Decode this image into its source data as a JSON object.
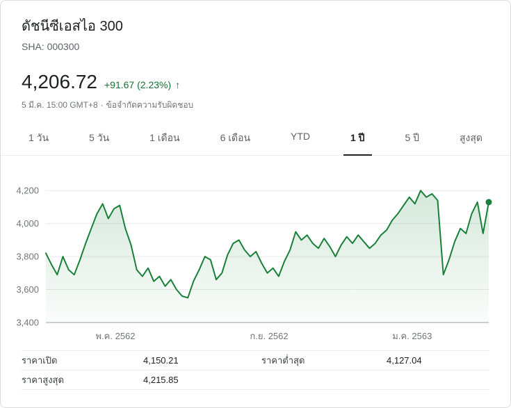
{
  "header": {
    "title": "ดัชนีซีเอสไอ 300",
    "symbol": "SHA: 000300"
  },
  "quote": {
    "price": "4,206.72",
    "change": "+91.67 (2.23%)",
    "arrow": "↑",
    "timestamp": "5 มี.ค. 15:00 GMT+8",
    "separator": "·",
    "disclaimer": "ข้อจำกัดความรับผิดชอบ"
  },
  "tabs": [
    {
      "label": "1 วัน",
      "active": false
    },
    {
      "label": "5 วัน",
      "active": false
    },
    {
      "label": "1 เดือน",
      "active": false
    },
    {
      "label": "6 เดือน",
      "active": false
    },
    {
      "label": "YTD",
      "active": false
    },
    {
      "label": "1 ปี",
      "active": true
    },
    {
      "label": "5 ปี",
      "active": false
    },
    {
      "label": "สูงสุด",
      "active": false
    }
  ],
  "chart_data": {
    "type": "area",
    "series_name": "ดัชนีซีเอสไอ 300 (1 ปี)",
    "values": [
      3820,
      3750,
      3690,
      3800,
      3720,
      3690,
      3780,
      3880,
      3970,
      4060,
      4120,
      4030,
      4090,
      4110,
      3970,
      3870,
      3720,
      3680,
      3730,
      3650,
      3680,
      3620,
      3660,
      3600,
      3560,
      3550,
      3650,
      3720,
      3800,
      3780,
      3660,
      3700,
      3810,
      3880,
      3900,
      3840,
      3800,
      3830,
      3760,
      3700,
      3730,
      3680,
      3770,
      3840,
      3950,
      3900,
      3930,
      3880,
      3850,
      3910,
      3860,
      3800,
      3870,
      3920,
      3880,
      3930,
      3890,
      3850,
      3880,
      3930,
      3960,
      4020,
      4060,
      4110,
      4160,
      4120,
      4200,
      4160,
      4180,
      4140,
      3690,
      3780,
      3890,
      3970,
      3940,
      4060,
      4130,
      3940,
      4130
    ],
    "x_ticks": [
      {
        "label": "พ.ค. 2562",
        "pos": 0.157
      },
      {
        "label": "ก.ย. 2562",
        "pos": 0.504
      },
      {
        "label": "ม.ค. 2563",
        "pos": 0.827
      }
    ],
    "y_ticks": [
      {
        "label": "4,200",
        "value": 4200
      },
      {
        "label": "4,000",
        "value": 4000
      },
      {
        "label": "3,800",
        "value": 3800
      },
      {
        "label": "3,600",
        "value": 3600
      },
      {
        "label": "3,400",
        "value": 3400
      }
    ],
    "ylim": [
      3400,
      4285
    ],
    "grid": true,
    "legend": false,
    "line_color": "#188038",
    "dot_color": "#188038",
    "axis_label_color": "#70757a",
    "gridline_color": "#e8eaed",
    "baseline_color": "#9aa0a6"
  },
  "stats": {
    "left": [
      {
        "label": "ราคาเปิด",
        "value": "4,150.21"
      },
      {
        "label": "ราคาสูงสุด",
        "value": "4,215.85"
      }
    ],
    "right": [
      {
        "label": "ราคาต่ำสุด",
        "value": "4,127.04"
      }
    ]
  }
}
